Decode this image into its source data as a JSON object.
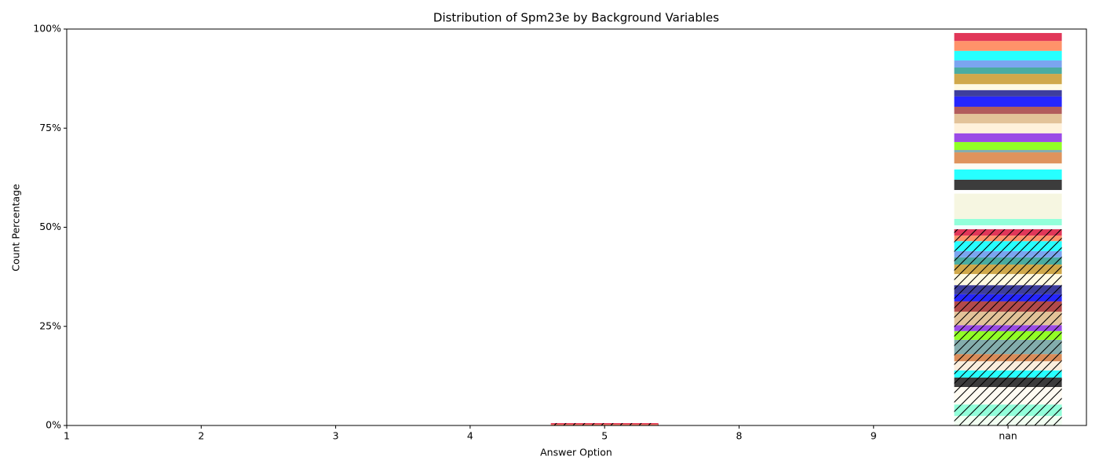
{
  "chart_data": {
    "type": "stacked_bar",
    "title": "Distribution of Spm23e by Background Variables",
    "xlabel": "Answer Option",
    "ylabel": "Count Percentage",
    "categories": [
      "1",
      "2",
      "3",
      "4",
      "5",
      "8",
      "9",
      "nan"
    ],
    "ylim": [
      0,
      100
    ],
    "yticks": [
      {
        "value": 0,
        "label": "0%"
      },
      {
        "value": 25,
        "label": "25%"
      },
      {
        "value": 50,
        "label": "50%"
      },
      {
        "value": 75,
        "label": "75%"
      },
      {
        "value": 100,
        "label": "100%"
      }
    ],
    "grid": false,
    "series": [
      {
        "color": "#f0fff0",
        "hatch": true,
        "values": [
          0,
          0,
          0,
          0,
          0,
          0,
          0,
          2.4
        ]
      },
      {
        "color": "#7fffd4",
        "hatch": true,
        "values": [
          0,
          0,
          0,
          0,
          0,
          0,
          0,
          2.9
        ]
      },
      {
        "color": "#fffaf0",
        "hatch": true,
        "values": [
          0,
          0,
          0,
          0,
          0,
          0,
          0,
          4.4
        ]
      },
      {
        "color": "#1a1a1a",
        "hatch": true,
        "values": [
          0,
          0,
          0,
          0,
          0,
          0,
          0,
          2.4
        ]
      },
      {
        "color": "#00ffff",
        "hatch": true,
        "values": [
          0,
          0,
          0,
          0,
          0,
          0,
          0,
          1.8
        ]
      },
      {
        "color": "#faebd7",
        "hatch": true,
        "values": [
          0,
          0,
          0,
          0,
          0,
          0,
          0,
          2.3
        ]
      },
      {
        "color": "#d2783c",
        "hatch": true,
        "values": [
          0,
          0,
          0,
          0,
          0,
          0,
          0,
          1.8
        ]
      },
      {
        "color": "#6f9f9f",
        "hatch": true,
        "values": [
          0,
          0,
          0,
          0,
          0,
          0,
          0,
          3.6
        ]
      },
      {
        "color": "#7fff00",
        "hatch": true,
        "values": [
          0,
          0,
          0,
          0,
          0,
          0,
          0,
          2.2
        ]
      },
      {
        "color": "#8a2be2",
        "hatch": true,
        "values": [
          0,
          0,
          0,
          0,
          0,
          0,
          0,
          1.5
        ]
      },
      {
        "color": "#deb887",
        "hatch": true,
        "values": [
          0,
          0,
          0,
          0,
          0,
          0,
          0,
          3.4
        ]
      },
      {
        "color": "#a52a2a",
        "hatch": true,
        "values": [
          0,
          0,
          0,
          0,
          0,
          0,
          0,
          2.6
        ]
      },
      {
        "color": "#0000ff",
        "hatch": true,
        "values": [
          0,
          0,
          0,
          0,
          0,
          0,
          0,
          1.8
        ]
      },
      {
        "color": "#1c1c8c",
        "hatch": true,
        "values": [
          0,
          0,
          0,
          0,
          0,
          0,
          0,
          2.3
        ]
      },
      {
        "color": "#fff8dc",
        "hatch": true,
        "values": [
          0,
          0,
          0,
          0,
          0,
          0,
          0,
          2.8
        ]
      },
      {
        "color": "#c8992a",
        "hatch": true,
        "values": [
          0,
          0,
          0,
          0,
          0,
          0,
          0,
          2.4
        ]
      },
      {
        "color": "#2a9d8f",
        "hatch": true,
        "values": [
          0,
          0,
          0,
          0,
          0,
          0,
          0,
          1.8
        ]
      },
      {
        "color": "#6495ed",
        "hatch": true,
        "values": [
          0,
          0,
          0,
          0,
          0,
          0,
          0,
          1.6
        ]
      },
      {
        "color": "#00ffff",
        "hatch": true,
        "values": [
          0,
          0,
          0,
          0,
          0,
          0,
          0,
          2.5
        ]
      },
      {
        "color": "#ff7f50",
        "hatch": true,
        "values": [
          0,
          0,
          0,
          0,
          0.3,
          0,
          0,
          1.4
        ]
      },
      {
        "color": "#dc143c",
        "hatch": true,
        "values": [
          0,
          0,
          0,
          0,
          0.3,
          0,
          0,
          1.6
        ]
      },
      {
        "color": "#f0ffff",
        "hatch": false,
        "values": [
          0,
          0,
          0,
          0,
          0,
          0,
          0,
          1.0
        ]
      },
      {
        "color": "#7fffd4",
        "hatch": false,
        "values": [
          0,
          0,
          0,
          0,
          0,
          0,
          0,
          1.6
        ]
      },
      {
        "color": "#f5f5dc",
        "hatch": false,
        "values": [
          0,
          0,
          0,
          0,
          0,
          0,
          0,
          6.4
        ]
      },
      {
        "color": "#ffffff",
        "hatch": false,
        "values": [
          0,
          0,
          0,
          0,
          0,
          0,
          0,
          0.9
        ]
      },
      {
        "color": "#1a1a1a",
        "hatch": false,
        "values": [
          0,
          0,
          0,
          0,
          0,
          0,
          0,
          2.6
        ]
      },
      {
        "color": "#00ffff",
        "hatch": false,
        "values": [
          0,
          0,
          0,
          0,
          0,
          0,
          0,
          2.6
        ]
      },
      {
        "color": "#fffaf0",
        "hatch": false,
        "values": [
          0,
          0,
          0,
          0,
          0,
          0,
          0,
          1.5
        ]
      },
      {
        "color": "#d98040",
        "hatch": false,
        "values": [
          0,
          0,
          0,
          0,
          0,
          0,
          0,
          2.8
        ]
      },
      {
        "color": "#6f9f9f",
        "hatch": false,
        "values": [
          0,
          0,
          0,
          0,
          0,
          0,
          0,
          0.6
        ]
      },
      {
        "color": "#7fff00",
        "hatch": false,
        "values": [
          0,
          0,
          0,
          0,
          0,
          0,
          0,
          2.0
        ]
      },
      {
        "color": "#8a2be2",
        "hatch": false,
        "values": [
          0,
          0,
          0,
          0,
          0,
          0,
          0,
          2.2
        ]
      },
      {
        "color": "#ffefd5",
        "hatch": false,
        "values": [
          0,
          0,
          0,
          0,
          0,
          0,
          0,
          2.5
        ]
      },
      {
        "color": "#deb887",
        "hatch": false,
        "values": [
          0,
          0,
          0,
          0,
          0,
          0,
          0,
          2.4
        ]
      },
      {
        "color": "#a54040",
        "hatch": false,
        "values": [
          0,
          0,
          0,
          0,
          0,
          0,
          0,
          1.8
        ]
      },
      {
        "color": "#0000ff",
        "hatch": false,
        "values": [
          0,
          0,
          0,
          0,
          0,
          0,
          0,
          2.6
        ]
      },
      {
        "color": "#1c1c8c",
        "hatch": false,
        "values": [
          0,
          0,
          0,
          0,
          0,
          0,
          0,
          1.6
        ]
      },
      {
        "color": "#fff8dc",
        "hatch": false,
        "values": [
          0,
          0,
          0,
          0,
          0,
          0,
          0,
          1.5
        ]
      },
      {
        "color": "#c8992a",
        "hatch": false,
        "values": [
          0,
          0,
          0,
          0,
          0,
          0,
          0,
          2.6
        ]
      },
      {
        "color": "#2a9d8f",
        "hatch": false,
        "values": [
          0,
          0,
          0,
          0,
          0,
          0,
          0,
          1.6
        ]
      },
      {
        "color": "#6495ed",
        "hatch": false,
        "values": [
          0,
          0,
          0,
          0,
          0,
          0,
          0,
          1.8
        ]
      },
      {
        "color": "#00ffff",
        "hatch": false,
        "values": [
          0,
          0,
          0,
          0,
          0,
          0,
          0,
          2.4
        ]
      },
      {
        "color": "#ff7f50",
        "hatch": false,
        "values": [
          0,
          0,
          0,
          0,
          0,
          0,
          0,
          2.5
        ]
      },
      {
        "color": "#dc143c",
        "hatch": false,
        "values": [
          0,
          0,
          0,
          0,
          0,
          0,
          0,
          2.0
        ]
      }
    ]
  }
}
